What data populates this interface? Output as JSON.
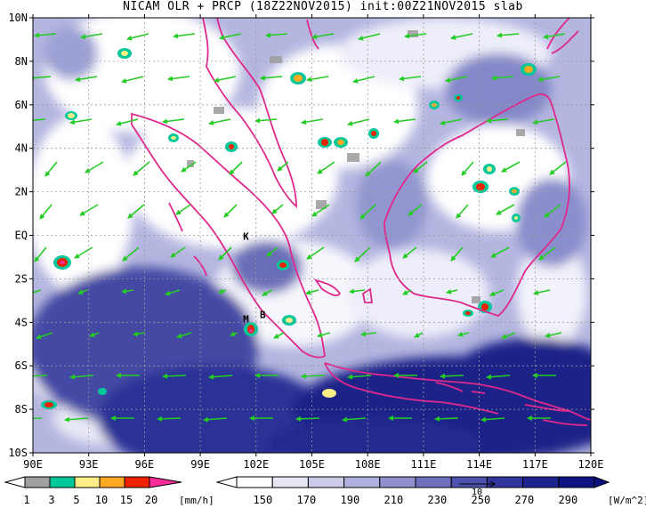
{
  "title": "NICAM OLR + PRCP (18Z22NOV2015) init:00Z21NOV2015 slab",
  "axes": {
    "lat_labels": [
      "10N",
      "8N",
      "6N",
      "4N",
      "2N",
      "EQ",
      "2S",
      "4S",
      "6S",
      "8S",
      "10S"
    ],
    "lon_labels": [
      "90E",
      "93E",
      "96E",
      "99E",
      "102E",
      "105E",
      "108E",
      "111E",
      "114E",
      "117E",
      "120E"
    ]
  },
  "annotations": [
    {
      "text": "K",
      "lon": 101.3,
      "lat": -0.2
    },
    {
      "text": "B",
      "lon": 102.2,
      "lat": -3.8
    },
    {
      "text": "M",
      "lon": 101.3,
      "lat": -4.0
    }
  ],
  "vector_scale_label": "10",
  "precip_bar": {
    "levels": [
      "1",
      "3",
      "5",
      "10",
      "15",
      "20"
    ],
    "unit": "[mm/h]",
    "colors": [
      "#a0a0a0",
      "#00c89a",
      "#ffee88",
      "#ffaa22",
      "#ee2200",
      "#ff2a9a"
    ]
  },
  "olr_bar": {
    "levels": [
      "150",
      "170",
      "190",
      "210",
      "230",
      "250",
      "270",
      "290"
    ],
    "unit": "[W/m^2]",
    "colors": [
      "#ffffff",
      "#e6e6f4",
      "#ccccea",
      "#b0b0de",
      "#9090cc",
      "#6e70be",
      "#4e52ac",
      "#30369c",
      "#1c2490",
      "#0c1484"
    ]
  },
  "colors": {
    "coast": "#e0288c",
    "wind": "#22cc22",
    "ocean_dark": "#1a2288"
  }
}
